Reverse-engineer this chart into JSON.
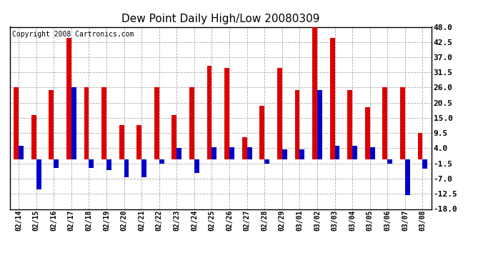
{
  "title": "Dew Point Daily High/Low 20080309",
  "copyright": "Copyright 2008 Cartronics.com",
  "dates": [
    "02/14",
    "02/15",
    "02/16",
    "02/17",
    "02/18",
    "02/19",
    "02/20",
    "02/21",
    "02/22",
    "02/23",
    "02/24",
    "02/25",
    "02/26",
    "02/27",
    "02/28",
    "02/29",
    "03/01",
    "03/02",
    "03/03",
    "03/04",
    "03/05",
    "03/06",
    "03/07",
    "03/08"
  ],
  "highs": [
    26.0,
    16.0,
    25.0,
    44.0,
    26.0,
    26.0,
    12.5,
    12.5,
    26.0,
    16.0,
    26.0,
    34.0,
    33.0,
    8.0,
    19.5,
    33.0,
    25.0,
    48.0,
    44.0,
    25.0,
    19.0,
    26.0,
    26.0,
    9.5
  ],
  "lows": [
    5.0,
    -11.0,
    -3.0,
    26.0,
    -3.0,
    -4.0,
    -6.5,
    -6.5,
    -1.5,
    4.0,
    -5.0,
    4.5,
    4.5,
    4.5,
    -1.5,
    3.5,
    3.5,
    25.0,
    5.0,
    5.0,
    4.5,
    -1.5,
    -13.0,
    -3.5
  ],
  "bar_width": 0.28,
  "high_color": "#dd0000",
  "low_color": "#0000cc",
  "ylim": [
    -18.0,
    48.0
  ],
  "yticks": [
    -18.0,
    -12.5,
    -7.0,
    -1.5,
    4.0,
    9.5,
    15.0,
    20.5,
    26.0,
    31.5,
    37.0,
    42.5,
    48.0
  ],
  "grid_color": "#aaaaaa",
  "background_color": "#ffffff",
  "title_fontsize": 11,
  "copyright_fontsize": 7,
  "tick_fontsize": 7,
  "ytick_fontsize": 8
}
